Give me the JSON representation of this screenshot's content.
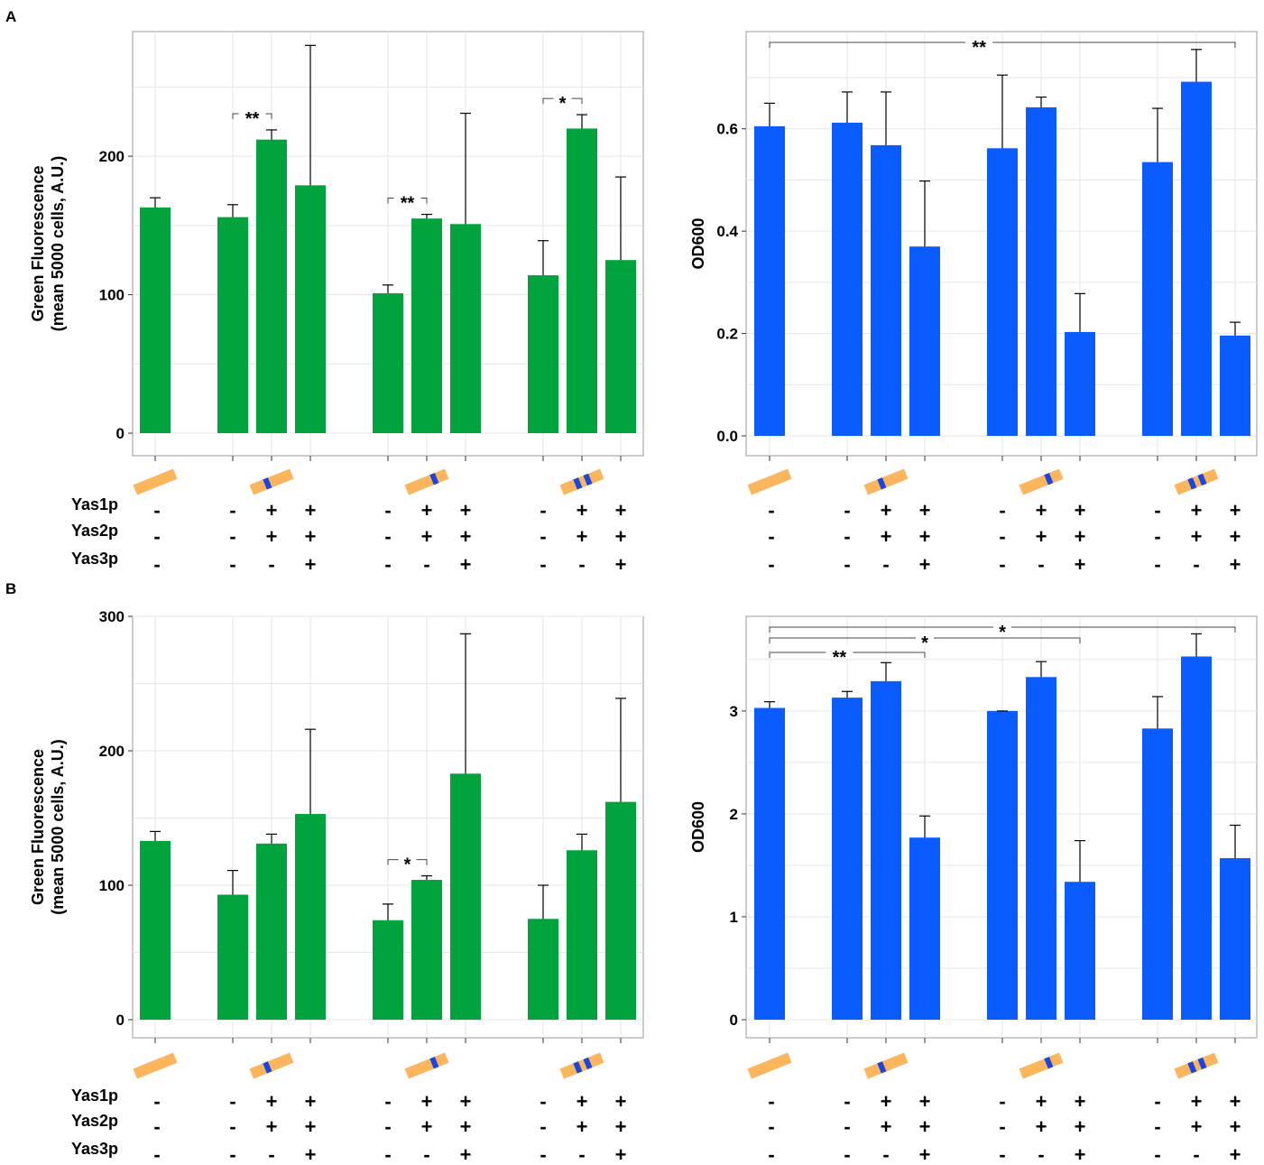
{
  "panels": {
    "A": "A",
    "B": "B"
  },
  "colors": {
    "green": "#00a33c",
    "blue": "#0a5cff",
    "plasmid": "#fbb55c",
    "insert": "#1a45e0",
    "frame": "#999999",
    "grid": "#e6e6e6"
  },
  "row_labels": [
    "Yas1p",
    "Yas2p",
    "Yas3p"
  ],
  "conditions": {
    "yas1p": [
      "-",
      "-",
      "+",
      "+",
      "-",
      "+",
      "+",
      "-",
      "+",
      "+"
    ],
    "yas2p": [
      "-",
      "-",
      "+",
      "+",
      "-",
      "+",
      "+",
      "-",
      "+",
      "+"
    ],
    "yas3p": [
      "-",
      "-",
      "-",
      "+",
      "-",
      "-",
      "+",
      "-",
      "-",
      "+"
    ]
  },
  "construct_icons": [
    "plasmid-no-insert-icon",
    "plasmid-one-insert-icon",
    "plasmid-one-insert-icon",
    "plasmid-two-insert-icon"
  ],
  "chart_data": [
    {
      "id": "A-left",
      "type": "bar",
      "panel": "A",
      "ylabel_line1": "Green Fluorescence",
      "ylabel_line2": "(mean 5000 cells, A.U.)",
      "ylim": [
        0,
        290
      ],
      "yticks": [
        0,
        100,
        200
      ],
      "grid": true,
      "categories": [
        "1",
        "2",
        "3",
        "4",
        "5",
        "6",
        "7",
        "8",
        "9",
        "10"
      ],
      "values": [
        163,
        156,
        212,
        179,
        101,
        155,
        151,
        114,
        220,
        125
      ],
      "error_upper": [
        170,
        165,
        219,
        280,
        107,
        158,
        231,
        139,
        230,
        185
      ],
      "significance": [
        {
          "from": 1,
          "to": 2,
          "label": "**"
        },
        {
          "from": 4,
          "to": 5,
          "label": "**"
        },
        {
          "from": 7,
          "to": 8,
          "label": "*"
        }
      ]
    },
    {
      "id": "A-right",
      "type": "bar",
      "panel": "A",
      "ylabel_line1": "OD600",
      "ylabel_line2": "",
      "ylim": [
        0,
        0.79
      ],
      "yticks": [
        0.0,
        0.2,
        0.4,
        0.6
      ],
      "tick_decimals": 1,
      "grid": true,
      "categories": [
        "1",
        "2",
        "3",
        "4",
        "5",
        "6",
        "7",
        "8",
        "9",
        "10"
      ],
      "values": [
        0.605,
        0.612,
        0.568,
        0.37,
        0.562,
        0.642,
        0.203,
        0.535,
        0.692,
        0.196
      ],
      "error_upper": [
        0.65,
        0.672,
        0.672,
        0.498,
        0.705,
        0.662,
        0.278,
        0.64,
        0.755,
        0.222
      ],
      "significance": [
        {
          "from": 0,
          "to": 9,
          "label": "**"
        }
      ]
    },
    {
      "id": "B-left",
      "type": "bar",
      "panel": "B",
      "ylabel_line1": "Green Fluorescence",
      "ylabel_line2": "(mean 5000 cells, A.U.)",
      "ylim": [
        0,
        300
      ],
      "yticks": [
        0,
        100,
        200,
        300
      ],
      "grid": true,
      "categories": [
        "1",
        "2",
        "3",
        "4",
        "5",
        "6",
        "7",
        "8",
        "9",
        "10"
      ],
      "values": [
        133,
        93,
        131,
        153,
        74,
        104,
        183,
        75,
        126,
        162
      ],
      "error_upper": [
        140,
        111,
        138,
        216,
        86,
        107,
        287,
        100,
        138,
        239
      ],
      "significance": [
        {
          "from": 4,
          "to": 5,
          "label": "*"
        }
      ]
    },
    {
      "id": "B-right",
      "type": "bar",
      "panel": "B",
      "ylabel_line1": "OD600",
      "ylabel_line2": "",
      "ylim": [
        0,
        3.92
      ],
      "yticks": [
        0,
        1,
        2,
        3
      ],
      "tick_decimals": 0,
      "grid": true,
      "categories": [
        "1",
        "2",
        "3",
        "4",
        "5",
        "6",
        "7",
        "8",
        "9",
        "10"
      ],
      "values": [
        3.03,
        3.13,
        3.29,
        1.77,
        3.0,
        3.33,
        1.34,
        2.83,
        3.53,
        1.57
      ],
      "error_upper": [
        3.09,
        3.19,
        3.47,
        1.98,
        3.0,
        3.48,
        1.74,
        3.14,
        3.75,
        1.89
      ],
      "significance": [
        {
          "from": 0,
          "to": 3,
          "label": "**"
        },
        {
          "from": 0,
          "to": 6,
          "label": "*"
        },
        {
          "from": 0,
          "to": 9,
          "label": "*"
        }
      ]
    }
  ]
}
